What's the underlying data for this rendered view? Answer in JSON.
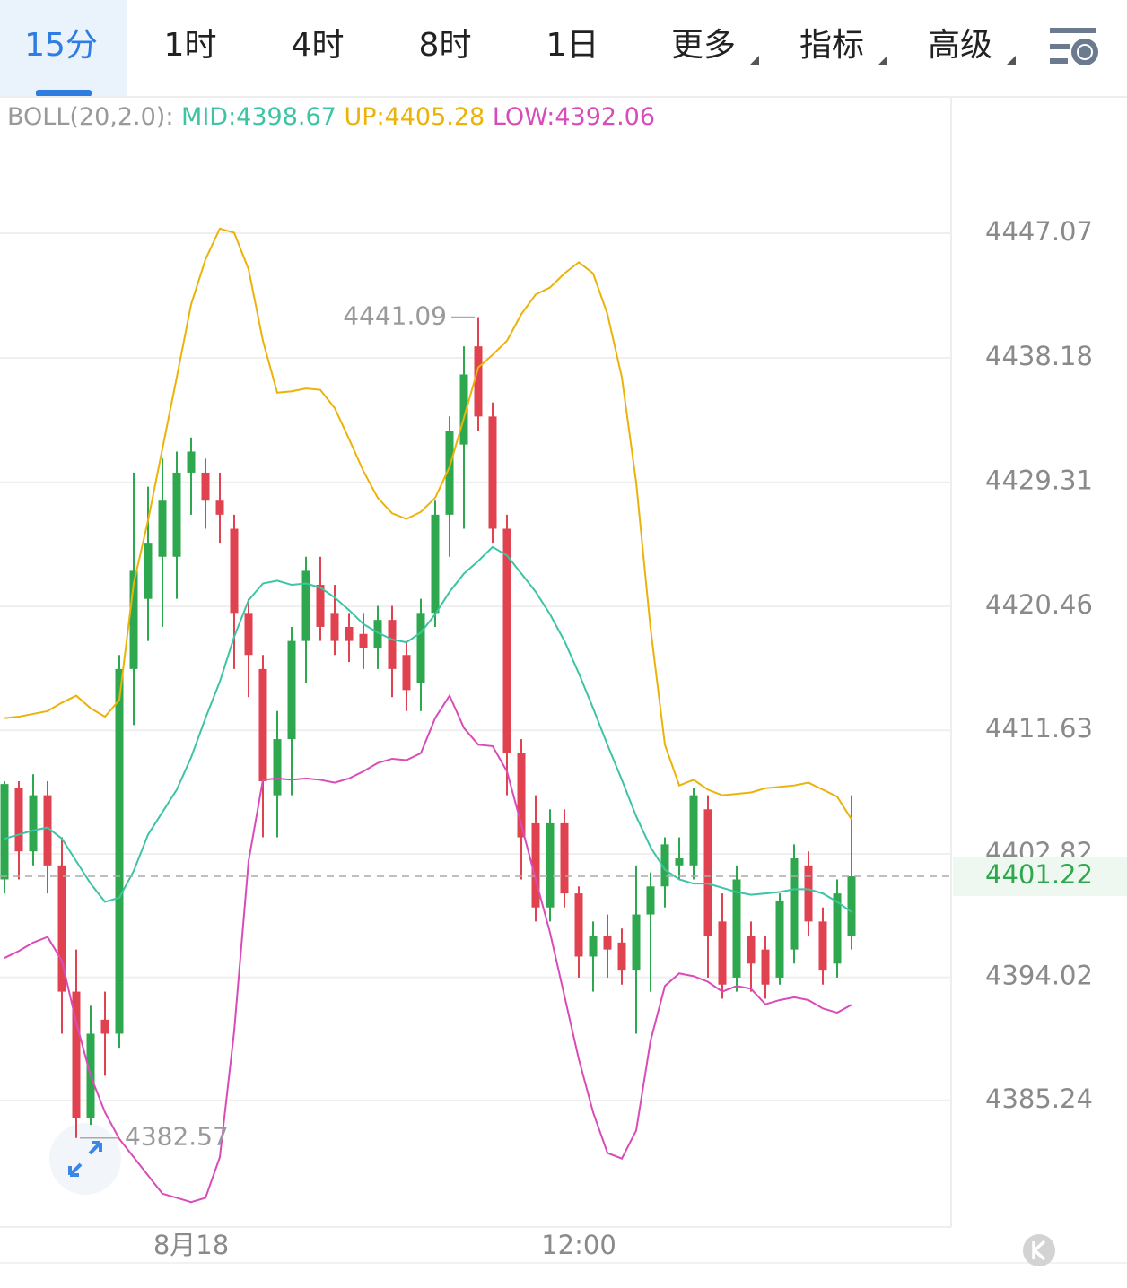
{
  "toolbar": {
    "tabs": [
      "15分",
      "1时",
      "4时",
      "8时",
      "1日",
      "更多",
      "指标",
      "高级"
    ]
  },
  "chart_data": {
    "type": "candlestick",
    "indicator": {
      "label": "BOLL(20,2.0):",
      "items": [
        {
          "text": "MID:4398.67",
          "color": "#3cc4a4"
        },
        {
          "text": "UP:4405.28",
          "color": "#ebb30a"
        },
        {
          "text": "LOW:4392.06",
          "color": "#d94bb8"
        }
      ]
    },
    "categories": [
      null,
      null,
      null,
      null,
      null,
      null,
      null,
      null,
      null,
      null,
      null,
      null,
      null,
      "8月18",
      null,
      null,
      null,
      null,
      null,
      null,
      null,
      null,
      null,
      null,
      null,
      null,
      null,
      null,
      null,
      null,
      null,
      null,
      null,
      null,
      null,
      null,
      null,
      null,
      null,
      null,
      "12:00",
      null,
      null,
      null,
      null,
      null,
      null,
      null,
      null,
      null,
      null,
      null,
      null,
      null,
      null,
      null,
      null,
      null,
      null,
      null
    ],
    "open": [
      4401,
      4407.5,
      4403,
      4407,
      4402,
      4393,
      4384,
      4391,
      4390,
      4416,
      4421,
      4424,
      4424,
      4430,
      4430,
      4428,
      4426,
      4420,
      4416,
      4407,
      4411,
      4418,
      4422,
      4420,
      4419,
      4418.5,
      4417.5,
      4419.5,
      4417,
      4415,
      4420,
      4427,
      4432,
      4439,
      4434,
      4426,
      4410,
      4405,
      4399,
      4405,
      4400,
      4395.5,
      4397,
      4396.5,
      4394.5,
      4398.5,
      4400.5,
      4402,
      4402,
      4406,
      4398,
      4394,
      4397,
      4396,
      4394,
      4396,
      4402,
      4398,
      4395,
      4397
    ],
    "high": [
      4408,
      4408,
      4408.5,
      4408,
      4404,
      4396,
      4392,
      4393,
      4417,
      4430,
      4429,
      4431,
      4431.5,
      4432.5,
      4431,
      4430,
      4427,
      4421,
      4417,
      4413,
      4419,
      4424,
      4424,
      4422,
      4420,
      4420,
      4420.5,
      4420.5,
      4418,
      4421,
      4428,
      4434,
      4439,
      4441.09,
      4435,
      4427,
      4411,
      4407,
      4406,
      4406,
      4400.5,
      4398,
      4398.5,
      4397.5,
      4402,
      4401.5,
      4404,
      4404,
      4407.5,
      4407,
      4400,
      4402,
      4398,
      4397,
      4400,
      4403.5,
      4403,
      4399,
      4401,
      4407
    ],
    "low": [
      4400,
      4401,
      4402,
      4400,
      4390,
      4382.57,
      4383.5,
      4387,
      4389,
      4412,
      4418,
      4419,
      4421,
      4427,
      4426,
      4425,
      4416,
      4414,
      4404,
      4404,
      4407,
      4415,
      4418,
      4417,
      4416.5,
      4416,
      4416,
      4414,
      4413,
      4413,
      4419,
      4424,
      4426,
      4433,
      4425,
      4407,
      4401,
      4398,
      4398,
      4399,
      4394,
      4393,
      4394,
      4393.5,
      4390,
      4393,
      4399,
      4401,
      4401,
      4394,
      4392.5,
      4393,
      4393,
      4392.5,
      4393.5,
      4395,
      4397,
      4393.5,
      4394,
      4396
    ],
    "close": [
      4407.8,
      4403,
      4407,
      4402,
      4393,
      4384,
      4390,
      4390,
      4416,
      4423,
      4425,
      4428,
      4430,
      4431.5,
      4428,
      4427,
      4420,
      4417,
      4408,
      4411,
      4418,
      4423,
      4419,
      4418,
      4418,
      4417.5,
      4419.5,
      4416,
      4414.5,
      4420,
      4427,
      4433,
      4437,
      4434,
      4426,
      4410,
      4404,
      4399,
      4405,
      4400,
      4395.5,
      4397,
      4396,
      4394.5,
      4398.5,
      4400.5,
      4403.5,
      4402.5,
      4407,
      4397,
      4393.5,
      4401,
      4395,
      4393.5,
      4399.5,
      4402.5,
      4398,
      4394.5,
      4400,
      4401.22
    ],
    "up_color": "#2ea84f",
    "down_color": "#e0434f",
    "series": [
      {
        "color": "#ebb30a",
        "values": [
          4412.5,
          4412.6,
          4412.8,
          4413.0,
          4413.6,
          4414.1,
          4413.2,
          4412.6,
          4413.8,
          4422.1,
          4426.6,
          4431.7,
          4436.8,
          4442.0,
          4445.2,
          4447.4,
          4447.1,
          4444.5,
          4439.4,
          4435.7,
          4435.8,
          4436.0,
          4435.9,
          4434.6,
          4432.4,
          4430.1,
          4428.2,
          4427.1,
          4426.7,
          4427.2,
          4428.2,
          4430.4,
          4433.9,
          4437.5,
          4438.4,
          4439.4,
          4441.3,
          4442.7,
          4443.2,
          4444.2,
          4445.0,
          4444.2,
          4441.3,
          4436.8,
          4429.3,
          4418.9,
          4410.6,
          4407.7,
          4408.1,
          4407.4,
          4407.0,
          4407.1,
          4407.2,
          4407.5,
          4407.6,
          4407.7,
          4407.9,
          4407.4,
          4406.9,
          4405.28
        ]
      },
      {
        "color": "#3cc4a4",
        "values": [
          4403.9,
          4404.2,
          4404.5,
          4404.7,
          4403.9,
          4402.3,
          4400.7,
          4399.4,
          4399.7,
          4401.6,
          4404.2,
          4405.8,
          4407.4,
          4409.7,
          4412.5,
          4415.1,
          4418.3,
          4420.9,
          4422.1,
          4422.3,
          4422.0,
          4422.1,
          4421.8,
          4421.1,
          4420.2,
          4419.2,
          4418.6,
          4418.1,
          4417.9,
          4418.6,
          4419.9,
          4421.5,
          4422.8,
          4423.7,
          4424.7,
          4424.1,
          4422.8,
          4421.5,
          4419.9,
          4418.0,
          4415.7,
          4413.2,
          4410.6,
          4408.1,
          4405.5,
          4403.3,
          4401.7,
          4401.0,
          4400.7,
          4400.7,
          4400.4,
          4400.1,
          4399.9,
          4400.0,
          4400.1,
          4400.3,
          4400.3,
          4400.0,
          4399.4,
          4398.67
        ]
      },
      {
        "color": "#d94bb8",
        "values": [
          4395.4,
          4395.9,
          4396.5,
          4396.9,
          4395.2,
          4390.8,
          4387.0,
          4384.4,
          4382.5,
          4381.2,
          4379.9,
          4378.6,
          4378.3,
          4378.0,
          4378.3,
          4381.2,
          4390.2,
          4402.3,
          4408.1,
          4408.2,
          4408.1,
          4408.2,
          4408.1,
          4407.9,
          4408.2,
          4408.7,
          4409.3,
          4409.6,
          4409.5,
          4410.0,
          4412.5,
          4414.1,
          4411.8,
          4410.6,
          4410.5,
          4408.7,
          4404.9,
          4401.0,
          4397.2,
          4392.7,
          4388.2,
          4384.4,
          4381.5,
          4381.1,
          4383.1,
          4389.5,
          4393.4,
          4394.3,
          4394.1,
          4393.7,
          4393.0,
          4393.4,
          4393.2,
          4392.1,
          4392.4,
          4392.6,
          4392.4,
          4391.8,
          4391.5,
          4392.06
        ]
      }
    ],
    "ylim": [
      4376.22,
      4456.66
    ],
    "yticks": [
      4447.07,
      4438.18,
      4429.31,
      4420.46,
      4411.63,
      4402.82,
      4394.02,
      4385.24
    ],
    "grid": true,
    "price_color": "#2ea84f"
  }
}
